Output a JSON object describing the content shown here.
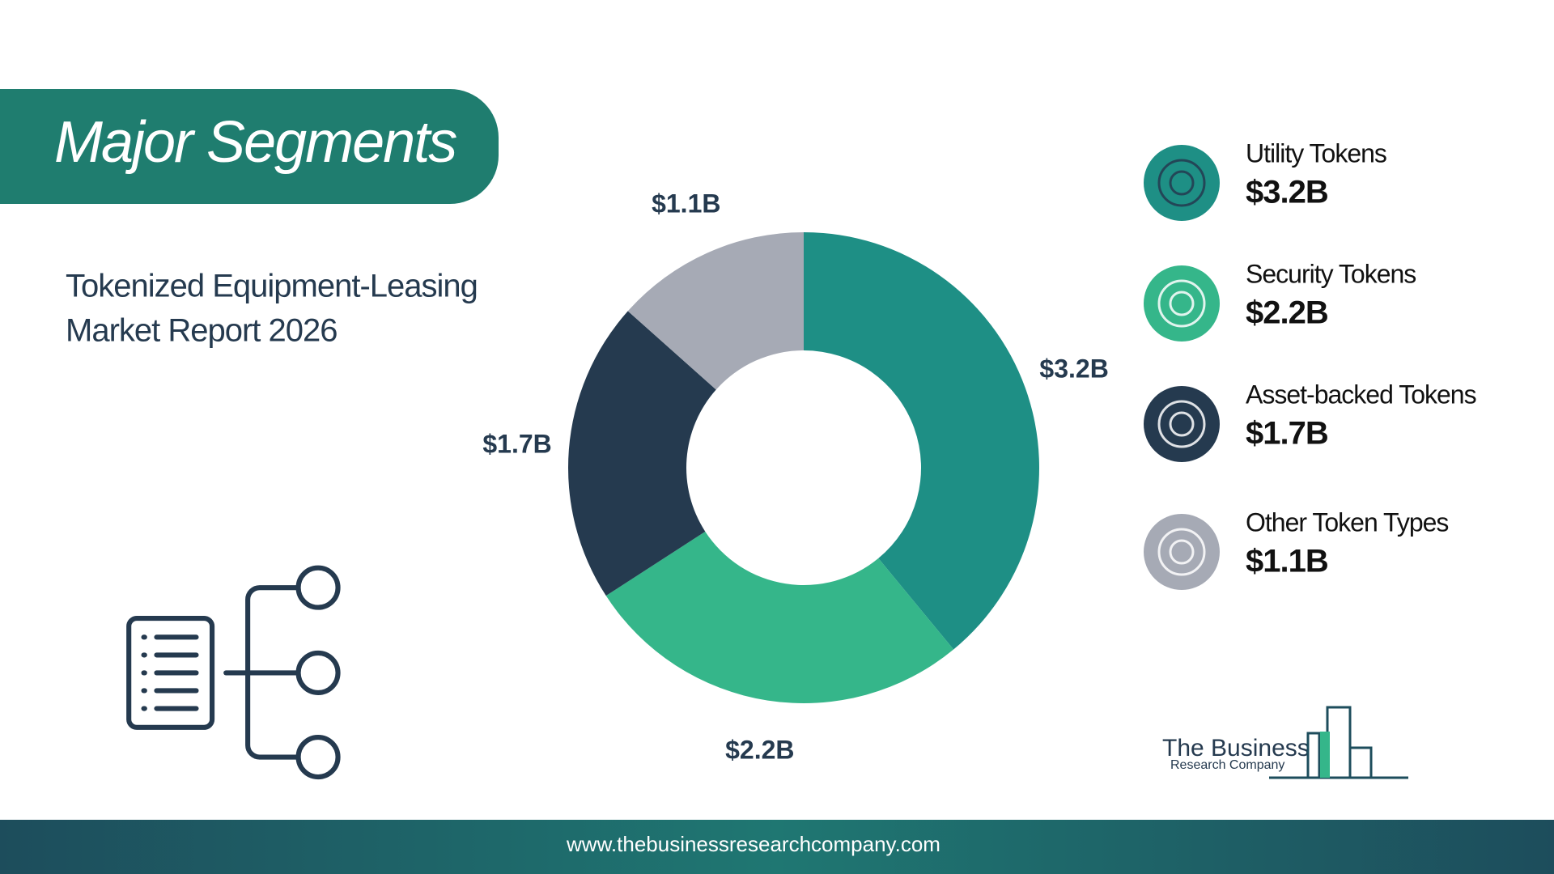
{
  "header": {
    "title": "Major Segments",
    "subtitle_lines": [
      "Tokenized Equipment-Leasing",
      "Market Report 2026"
    ]
  },
  "chart_data": {
    "type": "donut",
    "categories": [
      "Utility Tokens",
      "Security Tokens",
      "Asset-backed Tokens",
      "Other Token Types"
    ],
    "values": [
      3.2,
      2.2,
      1.7,
      1.1
    ],
    "value_labels": [
      "$3.2B",
      "$2.2B",
      "$1.7B",
      "$1.1B"
    ],
    "colors": [
      "#1e8f85",
      "#35b68a",
      "#253a4f",
      "#a6aab5"
    ]
  },
  "logo": {
    "line1": "The Business",
    "line2": "Research Company"
  },
  "footer": {
    "url": "www.thebusinessresearchcompany.com"
  }
}
